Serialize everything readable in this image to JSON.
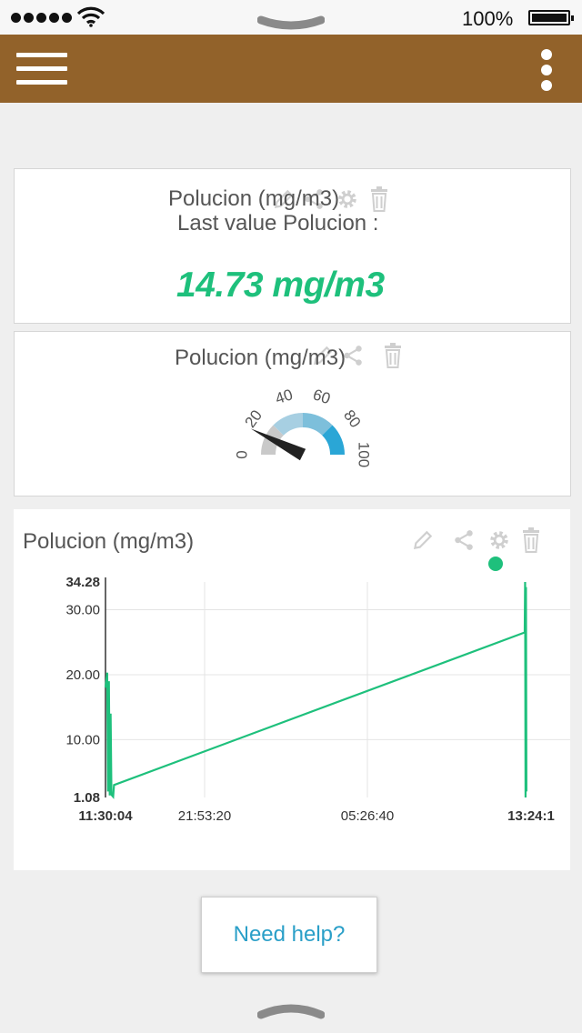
{
  "status_bar": {
    "signal_bars": 5,
    "battery_percent": "100%",
    "battery_level": 1.0
  },
  "app_bar": {
    "background": "#92622a",
    "menu_icon": "hamburger-menu-icon",
    "more_icon": "vertical-dots-icon"
  },
  "widgets": {
    "last_value": {
      "title": "Polucion (mg/m3)",
      "label": "Last value Polucion :",
      "value": "14.73 mg/m3",
      "value_color": "#1ec07c",
      "actions": [
        "pencil-icon",
        "share-icon",
        "gear-icon",
        "trash-icon"
      ]
    },
    "gauge": {
      "title": "Polucion (mg/m3)",
      "min": 0,
      "max": 100,
      "value": 14.73,
      "ticks": [
        "0",
        "20",
        "40",
        "60",
        "80",
        "100"
      ],
      "colors": [
        "#c9c9c9",
        "#a7cfe2",
        "#7dbfdb",
        "#2aa6d6"
      ],
      "actions": [
        "pencil-icon",
        "share-icon",
        "trash-icon"
      ]
    },
    "chart": {
      "title": "Polucion (mg/m3)",
      "status_dot_color": "#1ec07c",
      "actions": [
        "pencil-icon",
        "share-icon",
        "gear-icon",
        "trash-icon"
      ]
    }
  },
  "chart_data": {
    "type": "line",
    "title": "Polucion (mg/m3)",
    "xlabel": "",
    "ylabel": "",
    "y_ticks": [
      "30.00",
      "20.00",
      "10.00"
    ],
    "y_max_label": "34.28",
    "y_min_label": "1.08",
    "ylim": [
      1.08,
      34.28
    ],
    "x_ticks": [
      "11:30:04",
      "21:53:20",
      "05:26:40",
      "13:24:1"
    ],
    "grid": true,
    "line_color": "#1ec07c",
    "series": [
      {
        "x": [
          0,
          0.004,
          0.006,
          0.008,
          0.01,
          0.012,
          0.014,
          0.018,
          0.02,
          0.985,
          0.986,
          0.987,
          0.988,
          0.989
        ],
        "values": [
          18,
          20.3,
          2,
          19,
          1.4,
          14,
          1.5,
          1.2,
          3,
          26.5,
          34.28,
          1.08,
          33.5,
          2
        ]
      }
    ]
  },
  "help": {
    "label": "Need help?"
  }
}
